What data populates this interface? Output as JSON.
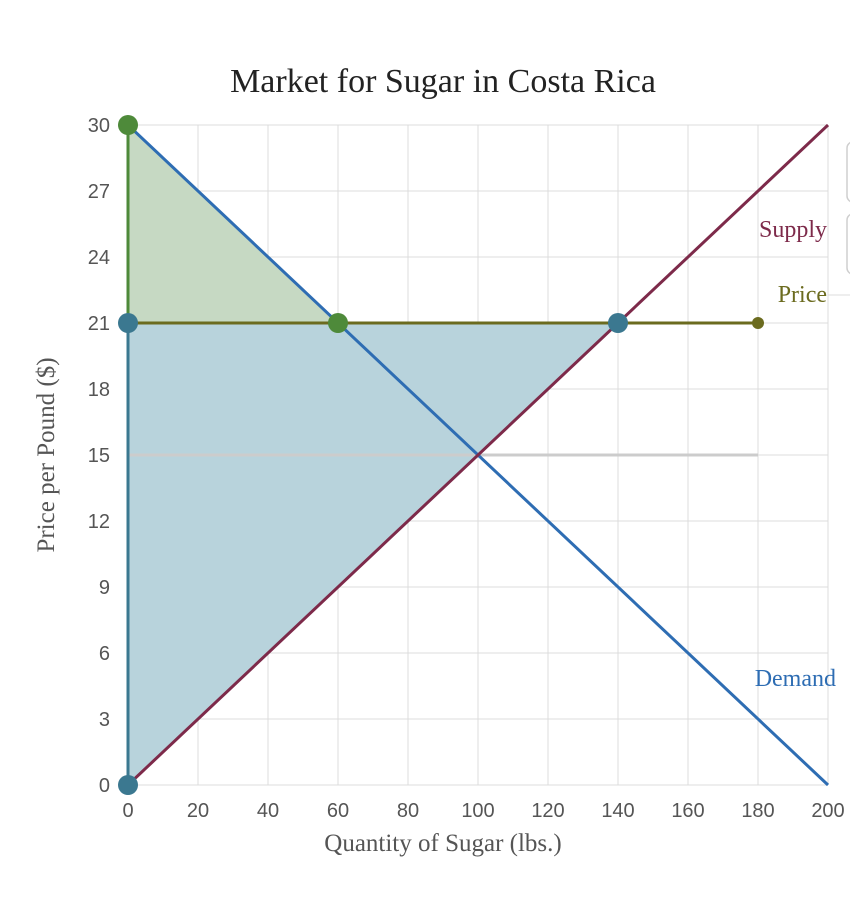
{
  "chart_data": {
    "type": "line",
    "title": "Market for Sugar in Costa Rica",
    "xlabel": "Quantity of Sugar (lbs.)",
    "ylabel": "Price per Pound ($)",
    "xlim": [
      0,
      200
    ],
    "ylim": [
      0,
      30
    ],
    "x_ticks": [
      0,
      20,
      40,
      60,
      80,
      100,
      120,
      140,
      160,
      180,
      200
    ],
    "y_ticks": [
      0,
      3,
      6,
      9,
      12,
      15,
      18,
      21,
      24,
      27,
      30
    ],
    "grid": true,
    "series": [
      {
        "name": "Demand",
        "color": "#2e6db3",
        "points": [
          [
            0,
            30
          ],
          [
            200,
            0
          ]
        ]
      },
      {
        "name": "Supply",
        "color": "#7d2a4a",
        "points": [
          [
            0,
            0
          ],
          [
            200,
            30
          ]
        ]
      },
      {
        "name": "Price",
        "color": "#6b6b1f",
        "points": [
          [
            0,
            21
          ],
          [
            180,
            21
          ]
        ]
      }
    ],
    "reference_lines": [
      {
        "points": [
          [
            0,
            15
          ],
          [
            180,
            15
          ]
        ],
        "color": "#cccccc"
      }
    ],
    "vertical_lines": [
      {
        "x": 0,
        "from": 21,
        "to": 30,
        "color": "#4e8a3a"
      },
      {
        "x": 0,
        "from": 0,
        "to": 21,
        "color": "#3b7890"
      }
    ],
    "shaded_regions": [
      {
        "vertices": [
          [
            0,
            30
          ],
          [
            0,
            21
          ],
          [
            60,
            21
          ]
        ],
        "color": "#c6d9c3"
      },
      {
        "vertices": [
          [
            0,
            21
          ],
          [
            140,
            21
          ],
          [
            0,
            0
          ]
        ],
        "color": "#b8d3dc"
      }
    ],
    "markers": [
      {
        "x": 0,
        "y": 30,
        "color": "#4e8a3a"
      },
      {
        "x": 60,
        "y": 21,
        "color": "#4e8a3a"
      },
      {
        "x": 0,
        "y": 21,
        "color": "#3b7890"
      },
      {
        "x": 140,
        "y": 21,
        "color": "#3b7890"
      },
      {
        "x": 0,
        "y": 0,
        "color": "#3b7890"
      }
    ]
  }
}
